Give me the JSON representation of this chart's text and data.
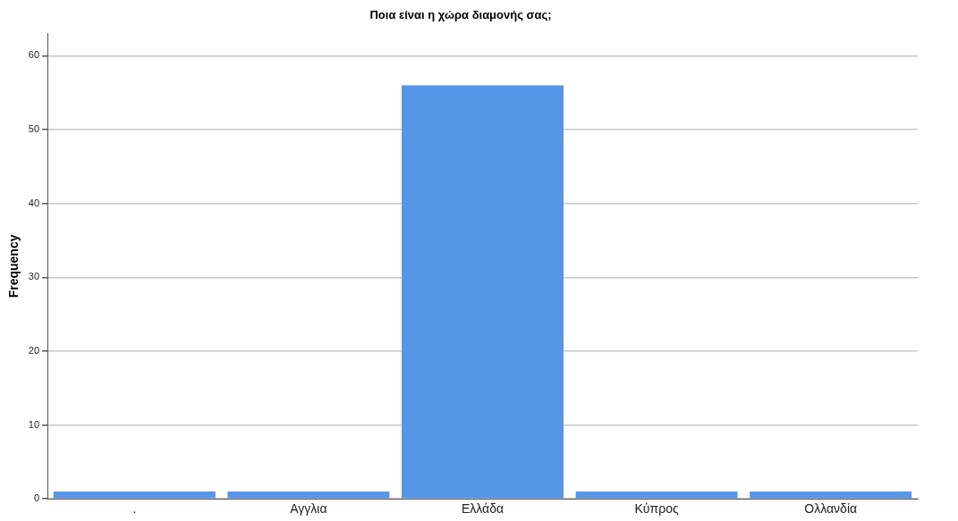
{
  "chart_data": {
    "type": "bar",
    "title": "Ποια είναι η χώρα διαμονής σας;",
    "ylabel": "Frequency",
    "categories": [
      ".",
      "Αγγλια",
      "Ελλάδα",
      "Κύπρος",
      "Ολλανδία"
    ],
    "values": [
      1,
      1,
      56,
      1,
      1
    ],
    "color": "#5596e6",
    "ylim": [
      0,
      63
    ],
    "yticks": [
      0,
      10,
      20,
      30,
      40,
      50,
      60
    ],
    "grid": "y",
    "legend": false
  }
}
